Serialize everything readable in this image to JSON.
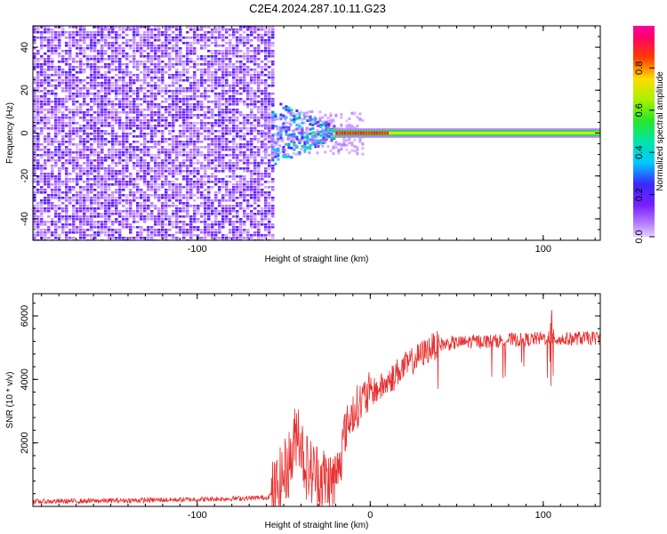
{
  "title": "C2E4.2024.287.10.11.G23",
  "chart_data": [
    {
      "type": "heatmap",
      "xlabel": "Height of straight line (km)",
      "ylabel": "Frequency (Hz)",
      "xlim": [
        -195,
        133
      ],
      "ylim": [
        -50,
        50
      ],
      "x_ticks": [
        -100,
        100
      ],
      "x_tick_labels": [
        "-100",
        "100"
      ],
      "y_ticks": [
        -40,
        -20,
        0,
        20,
        40
      ],
      "y_tick_labels": [
        "-40",
        "-20",
        "0",
        "20",
        "40"
      ],
      "description_regions": [
        {
          "x_range": [
            -195,
            -57
          ],
          "freq_range": [
            -50,
            50
          ],
          "amplitude": [
            0.05,
            0.25
          ]
        },
        {
          "x_range": [
            -57,
            -20
          ],
          "freq_range": [
            -8,
            10
          ],
          "amplitude": [
            0.3,
            0.5
          ]
        },
        {
          "x_range": [
            -20,
            133
          ],
          "freq_range": [
            -1,
            1
          ],
          "amplitude": [
            0.6,
            1.0
          ]
        }
      ],
      "colorbar": {
        "label": "Normalized spectral amplitude",
        "range": [
          0,
          1
        ],
        "ticks": [
          0.0,
          0.2,
          0.4,
          0.6,
          0.8
        ],
        "tick_labels": [
          "0.0",
          "0.2",
          "0.4",
          "0.6",
          "0.8"
        ]
      }
    },
    {
      "type": "line",
      "xlabel": "Height of straight line (km)",
      "ylabel": "SNR (10 * v/v)",
      "xlim": [
        -195,
        133
      ],
      "ylim": [
        0,
        6700
      ],
      "x_ticks": [
        -100,
        0,
        100
      ],
      "x_tick_labels": [
        "-100",
        "0",
        "100"
      ],
      "y_ticks": [
        2000,
        4000,
        6000
      ],
      "y_tick_labels": [
        "2000",
        "4000",
        "6000"
      ],
      "series": [
        {
          "color": "#e83030",
          "x": [
            -195,
            -150,
            -100,
            -70,
            -60,
            -55,
            -50,
            -45,
            -42,
            -40,
            -38,
            -35,
            -30,
            -25,
            -22,
            -20,
            -18,
            -15,
            -10,
            -5,
            0,
            5,
            10,
            15,
            20,
            25,
            30,
            35,
            40,
            50,
            60,
            70,
            80,
            90,
            100,
            105,
            110,
            120,
            133
          ],
          "y": [
            150,
            180,
            220,
            260,
            280,
            450,
            1000,
            1600,
            2600,
            2000,
            1400,
            1100,
            1000,
            800,
            700,
            900,
            1400,
            2300,
            3000,
            3300,
            3600,
            3700,
            3900,
            4200,
            4400,
            4600,
            4800,
            5000,
            5100,
            5150,
            5200,
            5200,
            5250,
            5250,
            5300,
            5300,
            5250,
            5300,
            5300
          ]
        }
      ]
    }
  ]
}
